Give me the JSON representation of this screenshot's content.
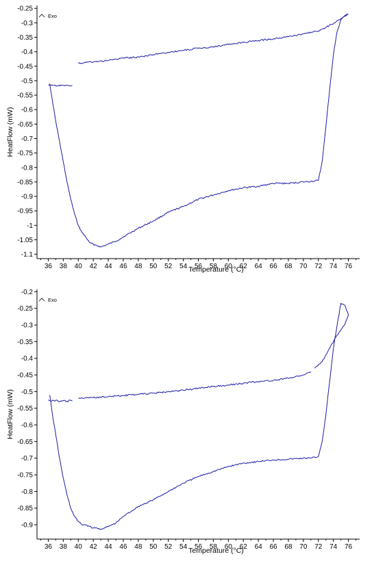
{
  "chart_data": [
    {
      "type": "line",
      "xlabel": "Temperature (°C)",
      "ylabel": "HeatFlow (mW)",
      "annotation": "Exo",
      "xlim": [
        34.5,
        77.5
      ],
      "ylim": [
        -1.115,
        -0.24
      ],
      "x_ticks": [
        "36",
        "38",
        "40",
        "42",
        "44",
        "46",
        "48",
        "50",
        "52",
        "54",
        "56",
        "58",
        "60",
        "62",
        "64",
        "66",
        "68",
        "70",
        "72",
        "74",
        "76"
      ],
      "y_ticks": [
        "-0.25",
        "-0.3",
        "-0.35",
        "-0.4",
        "-0.45",
        "-0.5",
        "-0.55",
        "-0.6",
        "-0.65",
        "-0.7",
        "-0.75",
        "-0.8",
        "-0.85",
        "-0.9",
        "-0.95",
        "-1",
        "-1.05",
        "-1.1"
      ],
      "series": [
        {
          "color": "#1a1aa6",
          "x": [
            36.2,
            36.5,
            37,
            37.5,
            38,
            38.5,
            39,
            39.5,
            40,
            40.5,
            41,
            41.5,
            42,
            42.5,
            43,
            43.5,
            44,
            45,
            46,
            48,
            50,
            52,
            54,
            56,
            58,
            60,
            62,
            64,
            66,
            68,
            70,
            71,
            72,
            72.5,
            73,
            73.5,
            74,
            74.5,
            75,
            75.5,
            76
          ],
          "y": [
            -0.51,
            -0.56,
            -0.64,
            -0.71,
            -0.78,
            -0.85,
            -0.91,
            -0.96,
            -1.0,
            -1.025,
            -1.04,
            -1.06,
            -1.065,
            -1.07,
            -1.075,
            -1.07,
            -1.065,
            -1.055,
            -1.04,
            -1.01,
            -0.985,
            -0.955,
            -0.935,
            -0.91,
            -0.895,
            -0.88,
            -0.87,
            -0.865,
            -0.855,
            -0.855,
            -0.85,
            -0.848,
            -0.845,
            -0.78,
            -0.66,
            -0.53,
            -0.41,
            -0.33,
            -0.29,
            -0.275,
            -0.27
          ]
        },
        {
          "color": "#1a1aa6",
          "x": [
            40,
            42,
            44,
            46,
            48,
            50,
            52,
            54,
            56,
            58,
            60,
            62,
            64,
            66,
            68,
            70,
            72,
            74,
            75,
            76
          ],
          "y": [
            -0.44,
            -0.435,
            -0.43,
            -0.422,
            -0.418,
            -0.41,
            -0.402,
            -0.395,
            -0.388,
            -0.383,
            -0.375,
            -0.368,
            -0.361,
            -0.355,
            -0.348,
            -0.338,
            -0.328,
            -0.303,
            -0.285,
            -0.27
          ]
        },
        {
          "color": "#1a1aa6",
          "x": [
            36,
            36.5,
            37,
            37.5,
            38,
            38.5,
            39,
            39.2
          ],
          "y": [
            -0.515,
            -0.516,
            -0.518,
            -0.515,
            -0.517,
            -0.516,
            -0.518,
            -0.516
          ]
        }
      ]
    },
    {
      "type": "line",
      "xlabel": "Temperature (°C)",
      "ylabel": "HeatFlow (mW)",
      "annotation": "Exo",
      "xlim": [
        34.5,
        77.5
      ],
      "ylim": [
        -0.943,
        -0.193
      ],
      "x_ticks": [
        "36",
        "38",
        "40",
        "42",
        "44",
        "46",
        "48",
        "50",
        "52",
        "54",
        "56",
        "58",
        "60",
        "62",
        "64",
        "66",
        "68",
        "70",
        "72",
        "74",
        "76"
      ],
      "y_ticks": [
        "-0.2",
        "-0.25",
        "-0.3",
        "-0.35",
        "-0.4",
        "-0.45",
        "-0.5",
        "-0.55",
        "-0.6",
        "-0.65",
        "-0.7",
        "-0.75",
        "-0.8",
        "-0.85",
        "-0.9"
      ],
      "series": [
        {
          "color": "#1a1aa6",
          "x": [
            36.2,
            36.5,
            37,
            37.5,
            38,
            38.5,
            39,
            39.5,
            40,
            40.5,
            41,
            41.5,
            42,
            42.5,
            43,
            43.5,
            44,
            45,
            46,
            48,
            50,
            52,
            54,
            56,
            58,
            60,
            62,
            64,
            66,
            68,
            70,
            71,
            72,
            72.5,
            73,
            73.5,
            74,
            74.5,
            75,
            75.5,
            76,
            75.5,
            74.5,
            73.5,
            72.5,
            71.5
          ],
          "y": [
            -0.51,
            -0.56,
            -0.63,
            -0.7,
            -0.76,
            -0.81,
            -0.85,
            -0.875,
            -0.89,
            -0.9,
            -0.9,
            -0.905,
            -0.91,
            -0.91,
            -0.913,
            -0.91,
            -0.905,
            -0.895,
            -0.875,
            -0.845,
            -0.825,
            -0.8,
            -0.775,
            -0.755,
            -0.74,
            -0.725,
            -0.715,
            -0.71,
            -0.705,
            -0.703,
            -0.7,
            -0.7,
            -0.695,
            -0.65,
            -0.57,
            -0.47,
            -0.37,
            -0.3,
            -0.235,
            -0.24,
            -0.27,
            -0.3,
            -0.33,
            -0.37,
            -0.41,
            -0.43
          ]
        },
        {
          "color": "#1a1aa6",
          "x": [
            40,
            42,
            44,
            46,
            48,
            50,
            52,
            54,
            56,
            58,
            60,
            62,
            64,
            66,
            68,
            70,
            71
          ],
          "y": [
            -0.52,
            -0.518,
            -0.515,
            -0.512,
            -0.508,
            -0.505,
            -0.5,
            -0.496,
            -0.49,
            -0.485,
            -0.48,
            -0.475,
            -0.47,
            -0.466,
            -0.46,
            -0.45,
            -0.44
          ]
        },
        {
          "color": "#1a1aa6",
          "x": [
            36,
            36.5,
            37,
            37.5,
            38,
            38.5,
            39,
            39.2
          ],
          "y": [
            -0.525,
            -0.528,
            -0.526,
            -0.53,
            -0.527,
            -0.529,
            -0.526,
            -0.528
          ]
        }
      ]
    }
  ]
}
